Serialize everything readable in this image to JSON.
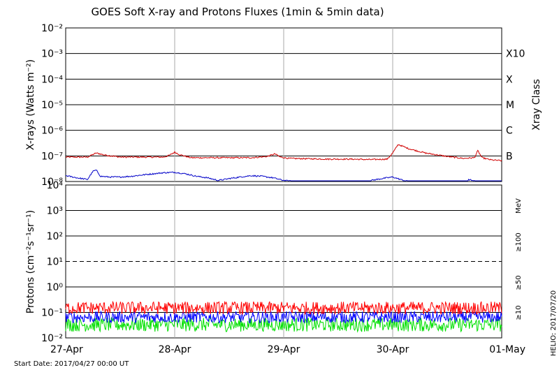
{
  "title": "GOES Soft X-ray and Protons Fluxes   (1min & 5min data)",
  "start_date": "Start Date: 2017/04/27 00:00 UT",
  "credit": "HELIO: 2017/07/20",
  "chart_data": [
    {
      "type": "line",
      "panel": "xray",
      "ylabel": "X-rays (Watts m⁻²)",
      "yscale": "log",
      "ylim": [
        1e-08,
        0.01
      ],
      "ytick_labels": [
        "10⁻⁸",
        "10⁻⁷",
        "10⁻⁶",
        "10⁻⁵",
        "10⁻⁴",
        "10⁻³",
        "10⁻²"
      ],
      "right_label": "Xray Class",
      "class_labels": [
        {
          "label": "B",
          "value": 1e-07
        },
        {
          "label": "C",
          "value": 1e-06
        },
        {
          "label": "M",
          "value": 1e-05
        },
        {
          "label": "X",
          "value": 0.0001
        },
        {
          "label": "X10",
          "value": 0.001
        }
      ],
      "x_ticks": [
        "27-Apr",
        "28-Apr",
        "29-Apr",
        "30-Apr",
        "01-May"
      ],
      "xlim": [
        "2017-04-27",
        "2017-05-01"
      ],
      "grid": true,
      "series": [
        {
          "color": "#d00000",
          "x": [
            0,
            0.1,
            0.2,
            0.28,
            0.35,
            0.5,
            0.65,
            0.75,
            0.9,
            0.95,
            1.0,
            1.05,
            1.15,
            1.3,
            1.5,
            1.7,
            1.85,
            1.92,
            1.97,
            2.05,
            2.2,
            2.4,
            2.6,
            2.8,
            2.95,
            3.0,
            3.05,
            3.15,
            3.3,
            3.5,
            3.65,
            3.75,
            3.78,
            3.82,
            3.9,
            4.0
          ],
          "y": [
            9e-08,
            9e-08,
            9e-08,
            1.3e-07,
            1.1e-07,
            9e-08,
            9e-08,
            9e-08,
            9e-08,
            1.05e-07,
            1.4e-07,
            1.1e-07,
            8.5e-08,
            8.5e-08,
            8.5e-08,
            8.5e-08,
            9.5e-08,
            1.2e-07,
            9e-08,
            8e-08,
            7.8e-08,
            7.5e-08,
            7.5e-08,
            7.2e-08,
            7.5e-08,
            1.3e-07,
            2.8e-07,
            1.9e-07,
            1.3e-07,
            9.5e-08,
            8e-08,
            8.5e-08,
            1.6e-07,
            8.5e-08,
            7e-08,
            6.5e-08
          ]
        },
        {
          "color": "#0000c8",
          "x": [
            0,
            0.1,
            0.2,
            0.25,
            0.28,
            0.32,
            0.4,
            0.5,
            0.6,
            0.7,
            0.8,
            0.9,
            1.0,
            1.1,
            1.2,
            1.3,
            1.4,
            1.5,
            1.6,
            1.7,
            1.8,
            1.9,
            2.0,
            2.1,
            2.2,
            2.4,
            2.6,
            2.8,
            2.9,
            3.0,
            3.1,
            3.2,
            3.3,
            3.5,
            3.65,
            3.7,
            3.8,
            3.9,
            4.0
          ],
          "y": [
            1.7e-08,
            1.4e-08,
            1.2e-08,
            2.5e-08,
            2.8e-08,
            1.6e-08,
            1.5e-08,
            1.5e-08,
            1.6e-08,
            1.8e-08,
            2e-08,
            2.2e-08,
            2.3e-08,
            2e-08,
            1.6e-08,
            1.4e-08,
            1.1e-08,
            1.3e-08,
            1.5e-08,
            1.7e-08,
            1.6e-08,
            1.4e-08,
            1.1e-08,
            1e-08,
            8e-09,
            8e-09,
            8e-09,
            1.1e-08,
            1.3e-08,
            1.5e-08,
            1.1e-08,
            9e-09,
            7e-09,
            6e-09,
            8e-09,
            1.2e-08,
            9e-09,
            1e-08,
            9e-09
          ]
        }
      ]
    },
    {
      "type": "line",
      "panel": "protons",
      "ylabel": "Protons (cm⁻²s⁻¹sr⁻¹)",
      "yscale": "log",
      "ylim": [
        0.01,
        10000
      ],
      "ytick_labels": [
        "10⁻²",
        "10⁻¹",
        "10⁰",
        "10¹",
        "10²",
        "10³",
        "10⁴"
      ],
      "dashed_threshold": 10,
      "unit_label": "MeV",
      "x_ticks": [
        "27-Apr",
        "28-Apr",
        "29-Apr",
        "30-Apr",
        "01-May"
      ],
      "xlim": [
        "2017-04-27",
        "2017-05-01"
      ],
      "grid": true,
      "series": [
        {
          "name": "≥10",
          "color": "#ff0000",
          "level": 0.15
        },
        {
          "name": "≥50",
          "color": "#0000ff",
          "level": 0.065
        },
        {
          "name": "≥100",
          "color": "#00e000",
          "level": 0.033
        }
      ]
    }
  ]
}
